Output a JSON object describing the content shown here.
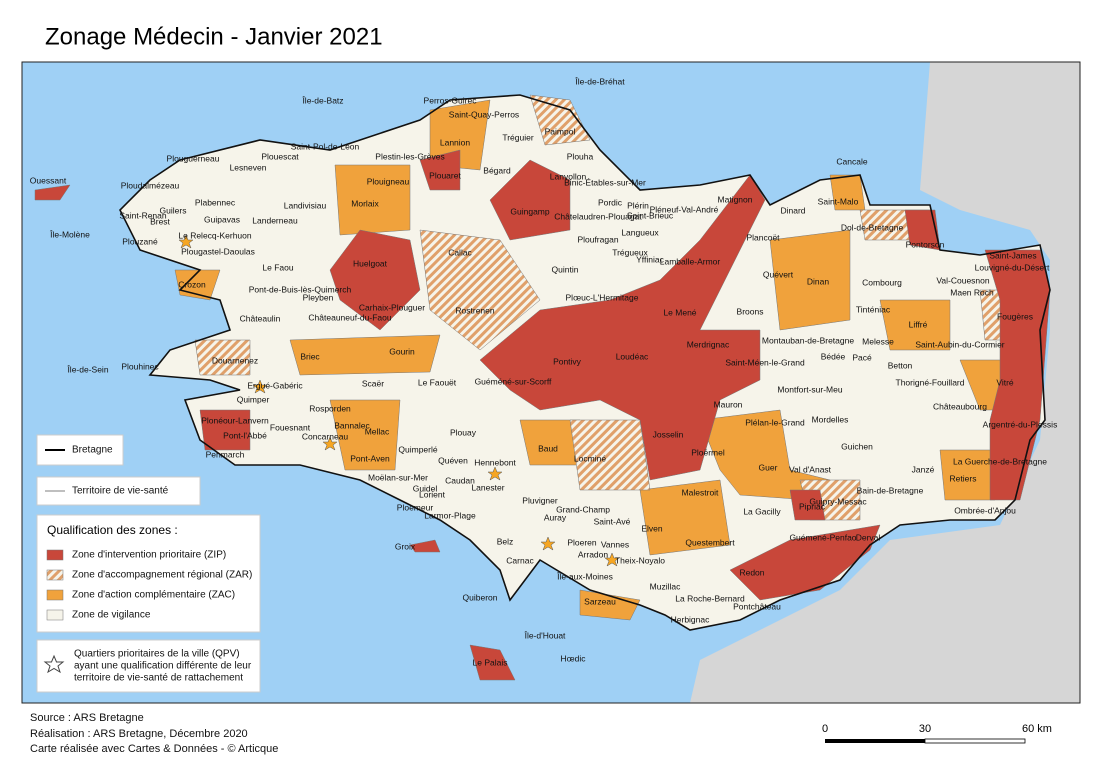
{
  "title": "Zonage Médecin - Janvier 2021",
  "legend": {
    "boundaries": [
      "Bretagne",
      "Territoire de vie-santé"
    ],
    "zones_title": "Qualification des zones :",
    "zones": [
      {
        "label": "Zone d'intervention prioritaire (ZIP)",
        "color": "#c8473a"
      },
      {
        "label": "Zone d'accompagnement régional (ZAR)",
        "color": "#e9b07a"
      },
      {
        "label": "Zone d'action complémentaire (ZAC)",
        "color": "#f0a23c"
      },
      {
        "label": "Zone de vigilance",
        "color": "#f6f4ea"
      }
    ],
    "qpv": [
      "Quartiers prioritaires de la ville (QPV)",
      "ayant une qualification différente de leur",
      "territoire de vie-santé de rattachement"
    ]
  },
  "footer": [
    "Source : ARS Bretagne",
    "Réalisation : ARS Bretagne, Décembre 2020",
    "Carte réalisée avec Cartes & Données - © Articque"
  ],
  "scale": [
    "0",
    "30",
    "60 km"
  ],
  "places": [
    "Île-de-Bréhat",
    "Île-de-Batz",
    "Perros-Guirec",
    "Saint-Quay-Perros",
    "Paimpol",
    "Tréguier",
    "Lannion",
    "Plouha",
    "Saint-Pol-de-Léon",
    "Plestin-les-Grèves",
    "Plouescat",
    "Plouguerneau",
    "Lesneven",
    "Plouigneau",
    "Plouaret",
    "Bégard",
    "Lanvollon",
    "Binic-Étables-sur-Mer",
    "Cancale",
    "Ouessant",
    "Ploudalmézeau",
    "Plabennec",
    "Landivisiau",
    "Morlaix",
    "Guingamp",
    "Matignon",
    "Saint-Malo",
    "Dinard",
    "Saint-Renan",
    "Guilers",
    "Guipavas",
    "Landerneau",
    "Brest",
    "Pordic",
    "Plérin",
    "Châtelaudren-Plouagat",
    "Saint-Brieuc",
    "Pléneuf-Val-André",
    "Île-Molène",
    "Le Relecq-Kerhuon",
    "Plouzané",
    "Plougastel-Daoulas",
    "Plancoët",
    "Dol-de-Bretagne",
    "Ploufragan",
    "Langueux",
    "Trégueux",
    "Yffiniac",
    "Callac",
    "Huelgoat",
    "Pontorson",
    "Saint-James",
    "Louvigné-du-Désert",
    "Le Faou",
    "Lamballe-Armor",
    "Quintin",
    "Quévert",
    "Dinan",
    "Combourg",
    "Val-Couesnon",
    "Crozon",
    "Pont-de-Buis-lès-Quimerch",
    "Maen Roch",
    "Pleyben",
    "Plœuc-L'Hermitage",
    "Carhaix-Plouguer",
    "Rostrenen",
    "Le Mené",
    "Broons",
    "Tinténiac",
    "Châteaulin",
    "Châteauneuf-du-Faou",
    "Liffré",
    "Fougères",
    "Montauban-de-Bretagne",
    "Melesse",
    "Saint-Aubin-du-Cormier",
    "Merdrignac",
    "Loudéac",
    "Briec",
    "Gourin",
    "Pontivy",
    "Bédée",
    "Pacé",
    "Douarnenez",
    "Saint-Méen-le-Grand",
    "Betton",
    "Thorigné-Fouillard",
    "Plouhinec",
    "Île-de-Sein",
    "Scaër",
    "Ergué-Gabéric",
    "Le Faouët",
    "Guéméné-sur-Scorff",
    "Montfort-sur-Meu",
    "Mordelles",
    "Vitré",
    "Quimper",
    "Rosporden",
    "Plonéour-Lanvern",
    "Châteaubourg",
    "Argentré-du-Plessis",
    "Mauron",
    "Plélan-le-Grand",
    "Bannalec",
    "Pont-l'Abbé",
    "Fouesnant",
    "Concarneau",
    "Mellac",
    "Plouay",
    "Josselin",
    "Guichen",
    "Baud",
    "Quimperlé",
    "Locminé",
    "Pont-Aven",
    "Penmarch",
    "Guer",
    "Ploërmel",
    "Val d'Anast",
    "La Guerche-de-Bretagne",
    "Janzé",
    "Hennebont",
    "Quéven",
    "Moëlan-sur-Mer",
    "Caudan",
    "Lanester",
    "Bain-de-Bretagne",
    "Retiers",
    "Guidel",
    "Lorient",
    "Pluvigner",
    "Grand-Champ",
    "Malestroit",
    "Guipry-Messac",
    "La Gacilly",
    "Pipriac",
    "Ombrée-d'Anjou",
    "Ploemeur",
    "Larmor-Plage",
    "Auray",
    "Saint-Avé",
    "Elven",
    "Questembert",
    "Guémené-Penfao",
    "Derval",
    "Groix",
    "Belz",
    "Ploeren",
    "Vannes",
    "Carnac",
    "Arradon",
    "Theix-Noyalo",
    "Redon",
    "Île-aux-Moines",
    "Muzillac",
    "Quiberon",
    "Sarzeau",
    "La Roche-Bernard",
    "Pontchâteau",
    "Herbignac",
    "Île-d'Houat",
    "Hœdic",
    "Le Palais"
  ]
}
